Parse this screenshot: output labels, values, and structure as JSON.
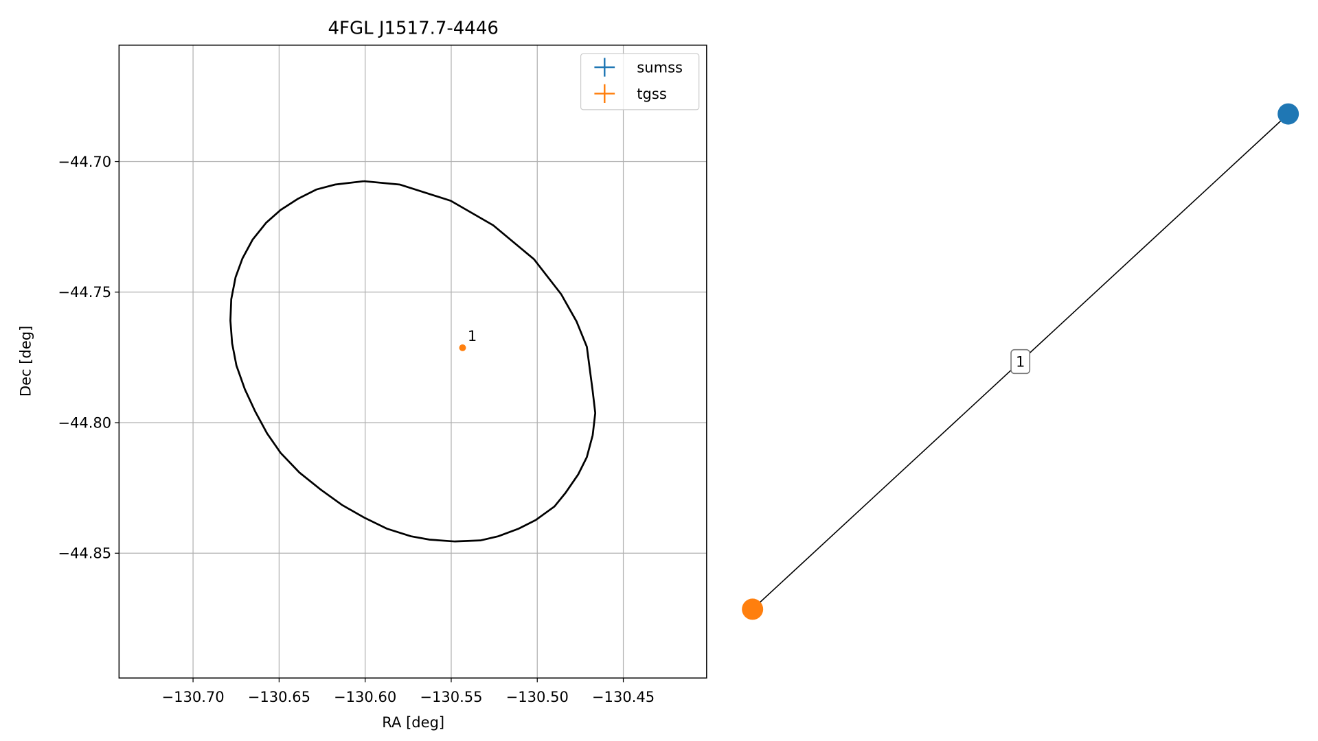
{
  "chart_data": [
    {
      "type": "scatter",
      "title": "4FGL J1517.7-4446",
      "x_label": "RA [deg]",
      "y_label": "Dec [deg]",
      "xlim": [
        -130.743,
        -130.4016
      ],
      "ylim": [
        -44.8978,
        -44.6554
      ],
      "xticks": [
        {
          "value": -130.7,
          "label": "−130.70"
        },
        {
          "value": -130.65,
          "label": "−130.65"
        },
        {
          "value": -130.6,
          "label": "−130.60"
        },
        {
          "value": -130.55,
          "label": "−130.55"
        },
        {
          "value": -130.5,
          "label": "−130.50"
        },
        {
          "value": -130.45,
          "label": "−130.45"
        }
      ],
      "yticks": [
        {
          "value": -44.7,
          "label": "−44.70"
        },
        {
          "value": -44.75,
          "label": "−44.75"
        },
        {
          "value": -44.8,
          "label": "−44.80"
        },
        {
          "value": -44.85,
          "label": "−44.85"
        }
      ],
      "grid": true,
      "legend": "upper right",
      "series": [
        {
          "name": "sumss",
          "color": "#1f77b4",
          "x": [],
          "y": [],
          "labels": []
        },
        {
          "name": "tgss",
          "color": "#ff7f0e",
          "x": [
            -130.5434
          ],
          "y": [
            -44.7713
          ],
          "labels": [
            "1"
          ]
        }
      ],
      "ellipse": {
        "color": "#000000",
        "x": [
          -130.6007,
          -130.5799,
          -130.5503,
          -130.5256,
          -130.5019,
          -130.4861,
          -130.4772,
          -130.4712,
          -130.4678,
          -130.4663,
          -130.4678,
          -130.4712,
          -130.4762,
          -130.4836,
          -130.49,
          -130.5009,
          -130.5108,
          -130.5226,
          -130.533,
          -130.5478,
          -130.5626,
          -130.5735,
          -130.5874,
          -130.6007,
          -130.6135,
          -130.6259,
          -130.6382,
          -130.6491,
          -130.657,
          -130.6639,
          -130.6699,
          -130.6748,
          -130.6773,
          -130.6783,
          -130.6778,
          -130.6753,
          -130.6713,
          -130.6654,
          -130.6575,
          -130.6491,
          -130.6392,
          -130.6284,
          -130.6175,
          -130.6007
        ],
        "y": [
          -44.7075,
          -44.7088,
          -44.715,
          -44.7244,
          -44.7374,
          -44.7508,
          -44.7612,
          -44.7709,
          -44.7879,
          -44.7963,
          -44.8048,
          -44.8132,
          -44.8198,
          -44.8269,
          -44.8321,
          -44.8373,
          -44.8406,
          -44.8435,
          -44.8451,
          -44.8455,
          -44.8448,
          -44.8435,
          -44.8406,
          -44.8363,
          -44.8315,
          -44.8256,
          -44.8191,
          -44.8116,
          -44.8041,
          -44.7957,
          -44.7872,
          -44.7781,
          -44.7696,
          -44.7609,
          -44.7527,
          -44.7443,
          -44.7371,
          -44.7299,
          -44.7234,
          -44.7185,
          -44.7143,
          -44.7107,
          -44.7088,
          -44.7075
        ]
      }
    },
    {
      "type": "network",
      "nodes": [
        {
          "color": "#1f77b4"
        },
        {
          "color": "#ff7f0e"
        }
      ],
      "edges": [
        {
          "source": 0,
          "target": 1,
          "label": "1"
        }
      ]
    }
  ]
}
